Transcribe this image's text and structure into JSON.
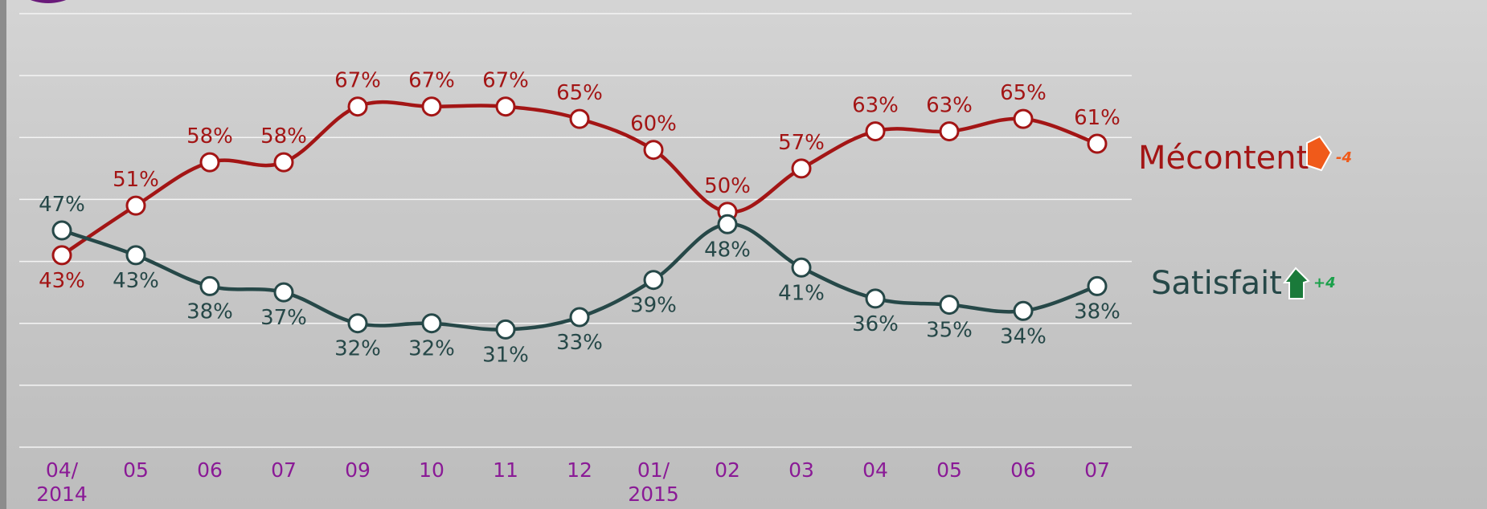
{
  "chart_data": {
    "type": "line",
    "categories": [
      "04/\n2014",
      "05",
      "06",
      "07",
      "09",
      "10",
      "11",
      "12",
      "01/\n2015",
      "02",
      "03",
      "04",
      "05",
      "06",
      "07"
    ],
    "ylim": [
      12,
      82
    ],
    "yticks": [
      12,
      22,
      32,
      42,
      52,
      62,
      72,
      82
    ],
    "grid": true,
    "series": [
      {
        "name": "Mécontent",
        "color": "#a31515",
        "change": "-4",
        "values": [
          43,
          51,
          58,
          58,
          67,
          67,
          67,
          65,
          60,
          50,
          57,
          63,
          63,
          65,
          61
        ],
        "value_labels": [
          "43%",
          "51%",
          "58%",
          "58%",
          "67%",
          "67%",
          "67%",
          "65%",
          "60%",
          "50%",
          "57%",
          "63%",
          "63%",
          "65%",
          "61%"
        ]
      },
      {
        "name": "Satisfait",
        "color": "#264848",
        "change": "+4",
        "values": [
          47,
          43,
          38,
          37,
          32,
          32,
          31,
          33,
          39,
          48,
          41,
          36,
          35,
          34,
          38
        ],
        "value_labels": [
          "47%",
          "43%",
          "38%",
          "37%",
          "32%",
          "32%",
          "31%",
          "33%",
          "39%",
          "48%",
          "41%",
          "36%",
          "35%",
          "34%",
          "38%"
        ]
      }
    ]
  }
}
